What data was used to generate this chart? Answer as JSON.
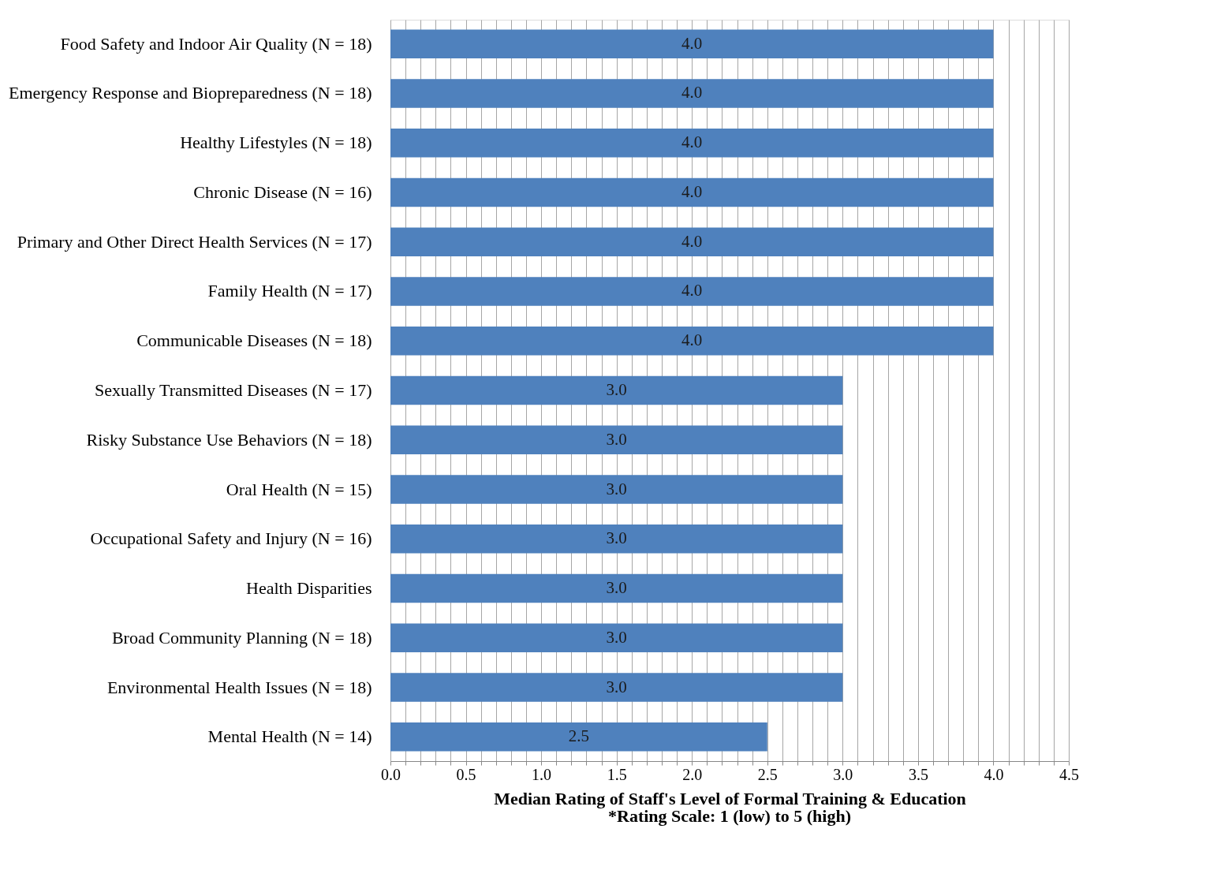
{
  "chart_data": {
    "type": "bar",
    "orientation": "horizontal",
    "categories": [
      "Food Safety and Indoor Air Quality (N = 18)",
      "Emergency Response and Biopreparedness (N = 18)",
      "Healthy Lifestyles (N = 18)",
      "Chronic Disease (N = 16)",
      "Primary and Other Direct Health Services (N = 17)",
      "Family Health (N = 17)",
      "Communicable Diseases (N = 18)",
      "Sexually Transmitted Diseases (N = 17)",
      "Risky Substance Use Behaviors (N = 18)",
      "Oral Health (N = 15)",
      "Occupational Safety and Injury (N = 16)",
      "Health Disparities",
      "Broad Community Planning (N = 18)",
      "Environmental Health Issues (N = 18)",
      "Mental Health (N = 14)"
    ],
    "values": [
      4.0,
      4.0,
      4.0,
      4.0,
      4.0,
      4.0,
      4.0,
      3.0,
      3.0,
      3.0,
      3.0,
      3.0,
      3.0,
      3.0,
      2.5
    ],
    "value_labels": [
      "4.0",
      "4.0",
      "4.0",
      "4.0",
      "4.0",
      "4.0",
      "4.0",
      "3.0",
      "3.0",
      "3.0",
      "3.0",
      "3.0",
      "3.0",
      "3.0",
      "2.5"
    ],
    "color": "#4f81bd",
    "xlabel": "Median Rating of Staff's Level of Formal Training & Education",
    "annotations": [
      "*Rating Scale: 1 (low) to 5 (high)"
    ],
    "xlim": [
      0,
      4.5
    ],
    "xticks": [
      {
        "value": 0,
        "label": "0.0"
      },
      {
        "value": 0.1,
        "label": null
      },
      {
        "value": 0.2,
        "label": null
      },
      {
        "value": 0.3,
        "label": null
      },
      {
        "value": 0.4,
        "label": null
      },
      {
        "value": 0.5,
        "label": "0.5"
      },
      {
        "value": 0.6,
        "label": null
      },
      {
        "value": 0.7,
        "label": null
      },
      {
        "value": 0.8,
        "label": null
      },
      {
        "value": 0.9,
        "label": null
      },
      {
        "value": 1.0,
        "label": "1.0"
      },
      {
        "value": 1.1,
        "label": null
      },
      {
        "value": 1.2,
        "label": null
      },
      {
        "value": 1.3,
        "label": null
      },
      {
        "value": 1.4,
        "label": null
      },
      {
        "value": 1.5,
        "label": "1.5"
      },
      {
        "value": 1.6,
        "label": null
      },
      {
        "value": 1.7,
        "label": null
      },
      {
        "value": 1.8,
        "label": null
      },
      {
        "value": 1.9,
        "label": null
      },
      {
        "value": 2.0,
        "label": "2.0"
      },
      {
        "value": 2.1,
        "label": null
      },
      {
        "value": 2.2,
        "label": null
      },
      {
        "value": 2.3,
        "label": null
      },
      {
        "value": 2.4,
        "label": null
      },
      {
        "value": 2.5,
        "label": "2.5"
      },
      {
        "value": 2.6,
        "label": null
      },
      {
        "value": 2.7,
        "label": null
      },
      {
        "value": 2.8,
        "label": null
      },
      {
        "value": 2.9,
        "label": null
      },
      {
        "value": 3.0,
        "label": "3.0"
      },
      {
        "value": 3.1,
        "label": null
      },
      {
        "value": 3.2,
        "label": null
      },
      {
        "value": 3.3,
        "label": null
      },
      {
        "value": 3.4,
        "label": null
      },
      {
        "value": 3.5,
        "label": "3.5"
      },
      {
        "value": 3.6,
        "label": null
      },
      {
        "value": 3.7,
        "label": null
      },
      {
        "value": 3.8,
        "label": null
      },
      {
        "value": 3.9,
        "label": null
      },
      {
        "value": 4.0,
        "label": "4.0"
      },
      {
        "value": 4.1,
        "label": null
      },
      {
        "value": 4.2,
        "label": null
      },
      {
        "value": 4.3,
        "label": null
      },
      {
        "value": 4.4,
        "label": null
      },
      {
        "value": 4.5,
        "label": "4.5"
      }
    ],
    "grid": "x"
  }
}
